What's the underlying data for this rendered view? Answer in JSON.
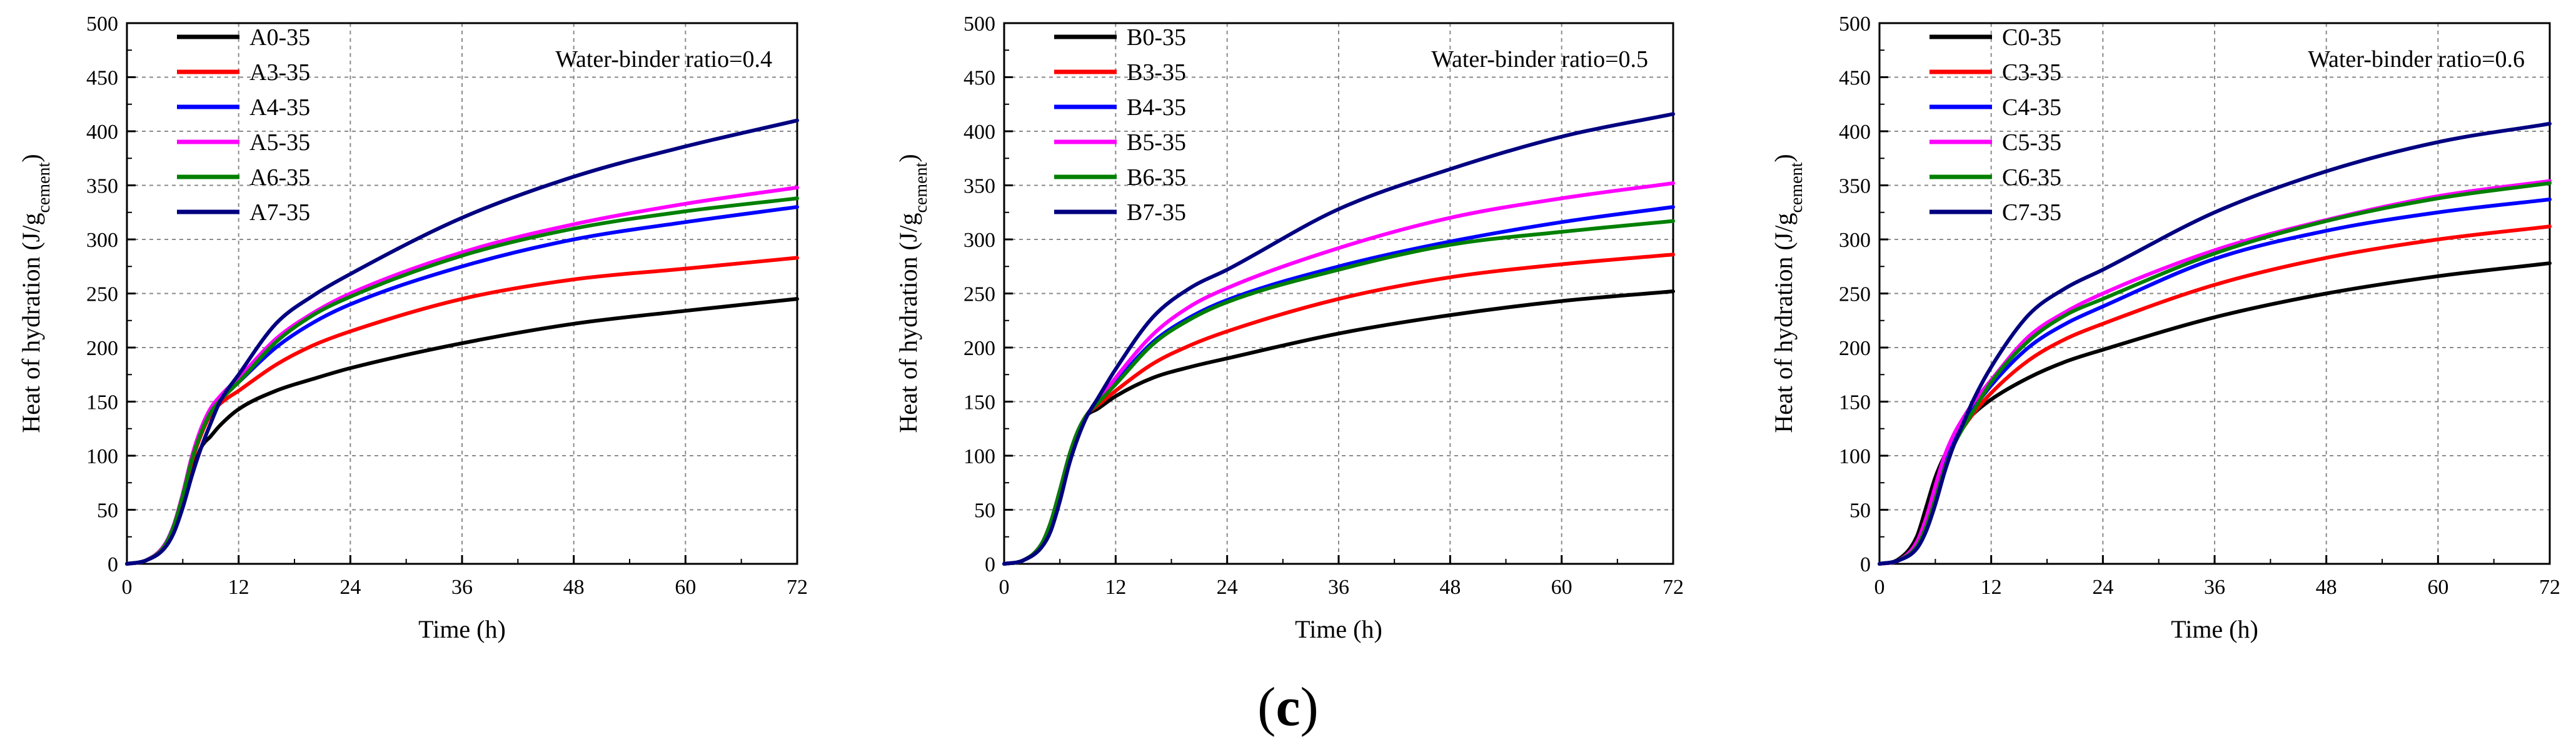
{
  "caption": "(c)",
  "caption_open": "(",
  "caption_letter": "c",
  "caption_close": ")",
  "colors": {
    "black": "#000000",
    "red": "#ff0000",
    "blue": "#0000ff",
    "magenta": "#ff00ff",
    "green": "#008000",
    "navy": "#000080"
  },
  "chart_data": [
    {
      "type": "line",
      "xlabel": "Time (h)",
      "ylabel": "Heat of hydration (J/g",
      "ylabel_sub": "cement",
      "ylabel_end": ")",
      "annotation": "Water-binder ratio=0.4",
      "xlim": [
        0,
        72
      ],
      "ylim": [
        0,
        500
      ],
      "x_ticks": [
        0,
        12,
        24,
        36,
        48,
        60,
        72
      ],
      "y_ticks": [
        0,
        50,
        100,
        150,
        200,
        250,
        300,
        350,
        400,
        450,
        500
      ],
      "grid": true,
      "legend_position": "top-left",
      "series": [
        {
          "name": "A0-35",
          "color": "#000000",
          "x": [
            0,
            2,
            4,
            5,
            6,
            7,
            8,
            9,
            10,
            12,
            16,
            20,
            24,
            36,
            48,
            60,
            72
          ],
          "y": [
            0,
            3,
            15,
            30,
            55,
            85,
            108,
            118,
            128,
            143,
            160,
            171,
            181,
            204,
            222,
            234,
            245
          ]
        },
        {
          "name": "A3-35",
          "color": "#ff0000",
          "x": [
            0,
            2,
            4,
            5,
            6,
            7,
            8,
            9,
            10,
            12,
            16,
            20,
            24,
            36,
            48,
            60,
            72
          ],
          "y": [
            0,
            3,
            16,
            33,
            62,
            95,
            120,
            138,
            148,
            160,
            184,
            202,
            215,
            245,
            263,
            273,
            283
          ]
        },
        {
          "name": "A4-35",
          "color": "#0000ff",
          "x": [
            0,
            2,
            4,
            5,
            6,
            7,
            8,
            9,
            10,
            12,
            16,
            20,
            24,
            36,
            48,
            60,
            72
          ],
          "y": [
            0,
            3,
            17,
            35,
            64,
            98,
            124,
            142,
            152,
            168,
            200,
            223,
            240,
            275,
            300,
            316,
            330
          ]
        },
        {
          "name": "A5-35",
          "color": "#ff00ff",
          "x": [
            0,
            2,
            4,
            5,
            6,
            7,
            8,
            9,
            10,
            12,
            16,
            20,
            24,
            36,
            48,
            60,
            72
          ],
          "y": [
            0,
            3,
            17,
            35,
            65,
            100,
            126,
            144,
            155,
            172,
            208,
            232,
            250,
            288,
            314,
            333,
            348
          ]
        },
        {
          "name": "A6-35",
          "color": "#008000",
          "x": [
            0,
            2,
            4,
            5,
            6,
            7,
            8,
            9,
            10,
            12,
            16,
            20,
            24,
            36,
            48,
            60,
            72
          ],
          "y": [
            0,
            3,
            16,
            34,
            63,
            97,
            122,
            140,
            151,
            168,
            205,
            230,
            247,
            285,
            310,
            326,
            338
          ]
        },
        {
          "name": "A7-35",
          "color": "#000080",
          "x": [
            0,
            2,
            4,
            5,
            6,
            7,
            8,
            9,
            10,
            12,
            16,
            20,
            24,
            36,
            48,
            60,
            72
          ],
          "y": [
            0,
            3,
            14,
            28,
            52,
            82,
            108,
            130,
            150,
            175,
            222,
            248,
            268,
            320,
            358,
            386,
            410
          ]
        }
      ]
    },
    {
      "type": "line",
      "xlabel": "Time (h)",
      "ylabel": "Heat of hydration (J/g",
      "ylabel_sub": "cement",
      "ylabel_end": ")",
      "annotation": "Water-binder ratio=0.5",
      "xlim": [
        0,
        72
      ],
      "ylim": [
        0,
        500
      ],
      "x_ticks": [
        0,
        12,
        24,
        36,
        48,
        60,
        72
      ],
      "y_ticks": [
        0,
        50,
        100,
        150,
        200,
        250,
        300,
        350,
        400,
        450,
        500
      ],
      "grid": true,
      "legend_position": "top-left",
      "series": [
        {
          "name": "B0-35",
          "color": "#000000",
          "x": [
            0,
            2,
            4,
            5,
            6,
            7,
            8,
            9,
            10,
            12,
            16,
            20,
            24,
            36,
            48,
            60,
            72
          ],
          "y": [
            0,
            3,
            18,
            38,
            68,
            100,
            124,
            138,
            143,
            155,
            172,
            182,
            190,
            213,
            230,
            243,
            252
          ]
        },
        {
          "name": "B3-35",
          "color": "#ff0000",
          "x": [
            0,
            2,
            4,
            5,
            6,
            7,
            8,
            9,
            10,
            12,
            16,
            20,
            24,
            36,
            48,
            60,
            72
          ],
          "y": [
            0,
            3,
            18,
            38,
            68,
            100,
            124,
            139,
            146,
            160,
            185,
            202,
            215,
            245,
            265,
            277,
            286
          ]
        },
        {
          "name": "B4-35",
          "color": "#0000ff",
          "x": [
            0,
            2,
            4,
            5,
            6,
            7,
            8,
            9,
            10,
            12,
            16,
            20,
            24,
            36,
            48,
            60,
            72
          ],
          "y": [
            0,
            3,
            18,
            38,
            68,
            100,
            124,
            139,
            148,
            168,
            205,
            228,
            244,
            275,
            298,
            316,
            330
          ]
        },
        {
          "name": "B5-35",
          "color": "#ff00ff",
          "x": [
            0,
            2,
            4,
            5,
            6,
            7,
            8,
            9,
            10,
            12,
            16,
            20,
            24,
            36,
            48,
            60,
            72
          ],
          "y": [
            0,
            3,
            18,
            38,
            68,
            100,
            124,
            139,
            149,
            172,
            212,
            238,
            255,
            292,
            320,
            338,
            352
          ]
        },
        {
          "name": "B6-35",
          "color": "#008000",
          "x": [
            0,
            2,
            4,
            5,
            6,
            7,
            8,
            9,
            10,
            12,
            16,
            20,
            24,
            36,
            48,
            60,
            72
          ],
          "y": [
            0,
            3,
            18,
            38,
            68,
            100,
            124,
            139,
            148,
            166,
            203,
            226,
            242,
            272,
            295,
            307,
            317
          ]
        },
        {
          "name": "B7-35",
          "color": "#000080",
          "x": [
            0,
            2,
            4,
            5,
            6,
            7,
            8,
            9,
            10,
            12,
            16,
            20,
            24,
            36,
            48,
            60,
            72
          ],
          "y": [
            0,
            3,
            15,
            30,
            58,
            92,
            118,
            138,
            152,
            180,
            228,
            255,
            272,
            328,
            365,
            395,
            416
          ]
        }
      ]
    },
    {
      "type": "line",
      "xlabel": "Time (h)",
      "ylabel": "Heat of hydration (J/g",
      "ylabel_sub": "cement",
      "ylabel_end": ")",
      "annotation": "Water-binder ratio=0.6",
      "xlim": [
        0,
        72
      ],
      "ylim": [
        0,
        500
      ],
      "x_ticks": [
        0,
        12,
        24,
        36,
        48,
        60,
        72
      ],
      "y_ticks": [
        0,
        50,
        100,
        150,
        200,
        250,
        300,
        350,
        400,
        450,
        500
      ],
      "grid": true,
      "legend_position": "top-left",
      "series": [
        {
          "name": "C0-35",
          "color": "#000000",
          "x": [
            0,
            2,
            4,
            5,
            6,
            7,
            8,
            9,
            10,
            12,
            16,
            20,
            24,
            36,
            48,
            60,
            72
          ],
          "y": [
            0,
            4,
            25,
            52,
            80,
            100,
            115,
            128,
            138,
            152,
            172,
            187,
            198,
            228,
            250,
            266,
            278
          ]
        },
        {
          "name": "C3-35",
          "color": "#ff0000",
          "x": [
            0,
            2,
            4,
            5,
            6,
            7,
            8,
            9,
            10,
            12,
            16,
            20,
            24,
            36,
            48,
            60,
            72
          ],
          "y": [
            0,
            3,
            20,
            42,
            70,
            95,
            112,
            126,
            138,
            158,
            188,
            208,
            222,
            258,
            283,
            300,
            312
          ]
        },
        {
          "name": "C4-35",
          "color": "#0000ff",
          "x": [
            0,
            2,
            4,
            5,
            6,
            7,
            8,
            9,
            10,
            12,
            16,
            20,
            24,
            36,
            48,
            60,
            72
          ],
          "y": [
            0,
            3,
            18,
            38,
            65,
            92,
            112,
            128,
            142,
            165,
            200,
            222,
            238,
            282,
            308,
            325,
            337
          ]
        },
        {
          "name": "C5-35",
          "color": "#ff00ff",
          "x": [
            0,
            2,
            4,
            5,
            6,
            7,
            8,
            9,
            10,
            12,
            16,
            20,
            24,
            36,
            48,
            60,
            72
          ],
          "y": [
            0,
            3,
            20,
            42,
            72,
            100,
            120,
            135,
            148,
            170,
            210,
            233,
            250,
            290,
            318,
            340,
            354
          ]
        },
        {
          "name": "C6-35",
          "color": "#008000",
          "x": [
            0,
            2,
            4,
            5,
            6,
            7,
            8,
            9,
            10,
            12,
            16,
            20,
            24,
            36,
            48,
            60,
            72
          ],
          "y": [
            0,
            3,
            16,
            34,
            60,
            88,
            110,
            126,
            140,
            168,
            206,
            230,
            245,
            287,
            317,
            338,
            352
          ]
        },
        {
          "name": "C7-35",
          "color": "#000080",
          "x": [
            0,
            2,
            4,
            5,
            6,
            7,
            8,
            9,
            10,
            12,
            16,
            20,
            24,
            36,
            48,
            60,
            72
          ],
          "y": [
            0,
            3,
            14,
            30,
            55,
            85,
            110,
            130,
            150,
            182,
            230,
            255,
            272,
            325,
            363,
            390,
            407
          ]
        }
      ]
    }
  ]
}
